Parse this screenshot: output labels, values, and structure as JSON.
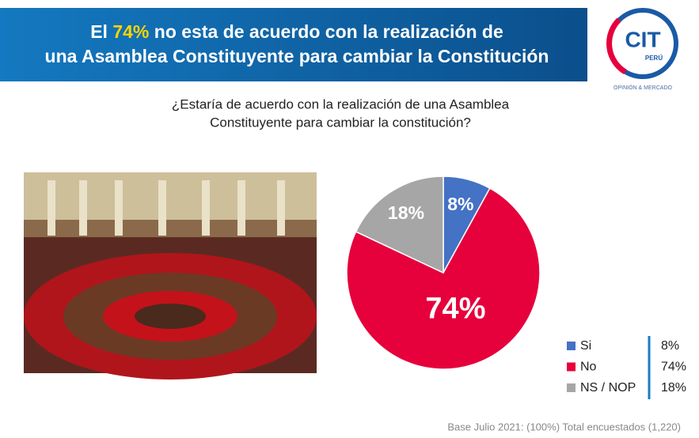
{
  "header": {
    "title_start": "El",
    "title_highlight": "74%",
    "title_line1_end": "no esta de acuerdo con la realización de",
    "title_line2": "una Asamblea Constituyente para cambiar la Constitución"
  },
  "logo": {
    "name": "CIT",
    "country": "PERÚ",
    "tagline": "OPINIÓN & MERCADO"
  },
  "question": [
    "¿Estaría de acuerdo con la realización de una Asamblea",
    "Constituyente para cambiar la constitución?"
  ],
  "chart_data": {
    "type": "pie",
    "categories": [
      "Si",
      "No",
      "NS / NOP"
    ],
    "values": [
      8,
      74,
      18
    ],
    "value_labels": [
      "8%",
      "74%",
      "18%"
    ],
    "colors": [
      "#4472c4",
      "#e6003c",
      "#a6a6a6"
    ],
    "legend": "bottom-right"
  },
  "footer": "Base Julio 2021: (100%) Total encuestados (1,220)"
}
